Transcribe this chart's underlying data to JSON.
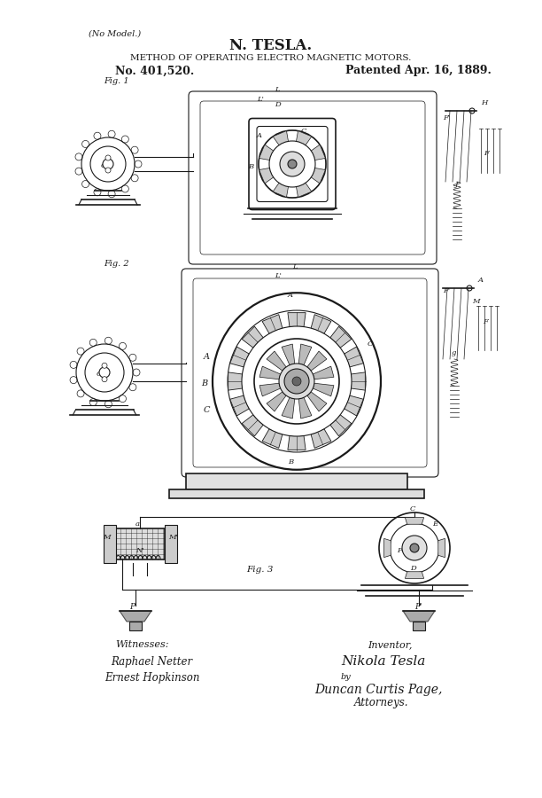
{
  "title": "N. TESLA.",
  "subtitle": "METHOD OF OPERATING ELECTRO MAGNETIC MOTORS.",
  "patent_no": "No. 401,520.",
  "patent_date": "Patented Apr. 16, 1889.",
  "no_model": "(No Model.)",
  "fig1_label": "Fig. 1",
  "fig2_label": "Fig. 2",
  "fig3_label": "Fig. 3",
  "witnesses_label": "Witnesses:",
  "witness1": "Raphael Netter",
  "witness2": "Ernest Hopkinson",
  "inventor_label": "Inventor,",
  "inventor_name": "Nikola Tesla",
  "inventor_by": "by",
  "attorney_agent": "Duncan Curtis Page,",
  "attorneys_label": "Attorneys.",
  "bg_color": "#ffffff",
  "line_color": "#1a1a1a",
  "fig_width": 6.12,
  "fig_height": 9.0,
  "dpi": 100
}
